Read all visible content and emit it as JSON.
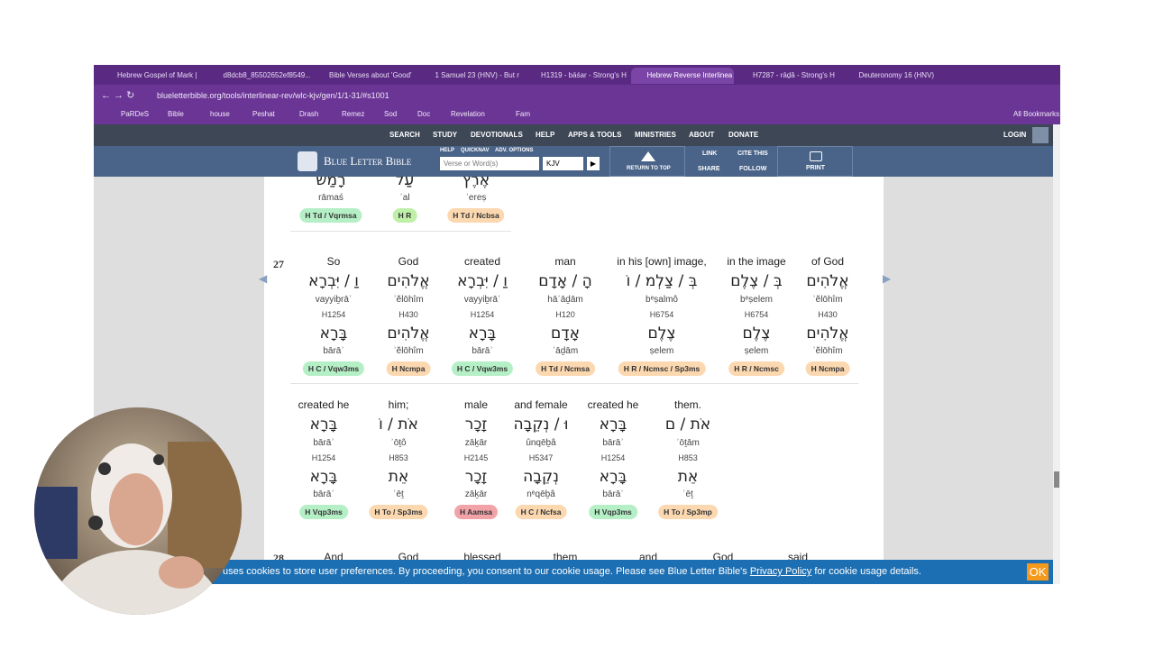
{
  "browser": {
    "tabs": [
      "Hebrew Gospel of Mark |",
      "d8dcb8_85502652ef8549...",
      "Bible Verses about 'Good'",
      "1 Samuel 23 (HNV) - But r",
      "H1319 - bāśar - Strong's H",
      "Hebrew Reverse Interlinea",
      "H7287 - rāḏâ - Strong's H",
      "Deuteronomy 16 (HNV)"
    ],
    "url": "blueletterbible.org/tools/interlinear-rev/wlc-kjv/gen/1/1-31/#s1001",
    "bookmarks": [
      "PaRDeS",
      "Bible",
      "house",
      "Peshat",
      "Drash",
      "Remez",
      "Sod",
      "Doc",
      "Revelation",
      "Fam"
    ],
    "all_bookmarks": "All Bookmarks"
  },
  "site": {
    "nav": [
      "SEARCH",
      "STUDY",
      "DEVOTIONALS",
      "HELP",
      "APPS & TOOLS",
      "MINISTRIES",
      "ABOUT",
      "DONATE"
    ],
    "login": "LOGIN",
    "logo": "Blue Letter Bible",
    "search_links": [
      "HELP",
      "QUICKNAV",
      "ADV. OPTIONS"
    ],
    "search_placeholder": "Verse or Word(s)",
    "version": "KJV",
    "return_top": "RETURN TO TOP",
    "link": "LINK",
    "share": "SHARE",
    "cite": "CITE THIS",
    "follow": "FOLLOW",
    "print": "PRINT"
  },
  "blocks": [
    {
      "rows": [
        [
          {
            "root": "רָמַשׂ",
            "root_translit": "rāmaś",
            "parsing": "H Td / Vqrmsa"
          },
          {
            "root": "עַל",
            "root_translit": "ʿal",
            "parsing": "H R"
          },
          {
            "root": "אֶרֶץ",
            "root_translit": "ʾereṣ",
            "parsing": "H Td / Ncbsa"
          }
        ]
      ]
    },
    {
      "number": "27",
      "rows": [
        [
          {
            "english": "So",
            "hebrew": "וַ / יִּבְרָא",
            "translit": "vayyiḇrāʾ",
            "strong": "H1254",
            "root": "בָּרָא",
            "root_translit": "bārāʾ",
            "parsing": "H C / Vqw3ms"
          },
          {
            "english": "God",
            "hebrew": "אֱלֹהִים",
            "translit": "ʾĕlōhîm",
            "strong": "H430",
            "root": "אֱלֹהִים",
            "root_translit": "ʾĕlōhîm",
            "parsing": "H Ncmpa"
          },
          {
            "english": "created",
            "hebrew": "וַ / יִּבְרָא",
            "translit": "vayyiḇrāʾ",
            "strong": "H1254",
            "root": "בָּרָא",
            "root_translit": "bārāʾ",
            "parsing": "H C / Vqw3ms"
          },
          {
            "english": "man",
            "hebrew": "הָ / אָדָם",
            "translit": "hāʾāḏām",
            "strong": "H120",
            "root": "אָדָם",
            "root_translit": "ʾāḏām",
            "parsing": "H Td / Ncmsa"
          },
          {
            "english": "in his [own] image,",
            "hebrew": "בְּ / צַלְמ / וֹ",
            "translit": "bᵉṣalmô",
            "strong": "H6754",
            "root": "צֶלֶם",
            "root_translit": "ṣelem",
            "parsing": "H R / Ncmsc / Sp3ms"
          },
          {
            "english": "in the image",
            "hebrew": "בְּ / צֶלֶם",
            "translit": "bᵉṣelem",
            "strong": "H6754",
            "root": "צֶלֶם",
            "root_translit": "ṣelem",
            "parsing": "H R / Ncmsc"
          },
          {
            "english": "of God",
            "hebrew": "אֱלֹהִים",
            "translit": "ʾĕlōhîm",
            "strong": "H430",
            "root": "אֱלֹהִים",
            "root_translit": "ʾĕlōhîm",
            "parsing": "H Ncmpa"
          }
        ],
        [
          {
            "english": "created he",
            "hebrew": "בָּרָא",
            "translit": "bārāʾ",
            "strong": "H1254",
            "root": "בָּרָא",
            "root_translit": "bārāʾ",
            "parsing": "H Vqp3ms"
          },
          {
            "english": "him;",
            "hebrew": "אֹת / וֹ",
            "translit": "ʾōṯô",
            "strong": "H853",
            "root": "אֵת",
            "root_translit": "ʾēṯ",
            "parsing": "H To / Sp3ms"
          },
          {
            "english": "male",
            "hebrew": "זָכָר",
            "translit": "zāḵār",
            "strong": "H2145",
            "root": "זָכָר",
            "root_translit": "zāḵār",
            "parsing": "H Aamsa"
          },
          {
            "english": "and female",
            "hebrew": "וּ / נְקֵבָה",
            "translit": "ûnqēḇâ",
            "strong": "H5347",
            "root": "נְקֵבָה",
            "root_translit": "nᵉqēḇâ",
            "parsing": "H C / Ncfsa"
          },
          {
            "english": "created he",
            "hebrew": "בָּרָא",
            "translit": "bārāʾ",
            "strong": "H1254",
            "root": "בָּרָא",
            "root_translit": "bārāʾ",
            "parsing": "H Vqp3ms"
          },
          {
            "english": "them.",
            "hebrew": "אֹת / ם",
            "translit": "ʾōṯām",
            "strong": "H853",
            "root": "אֵת",
            "root_translit": "ʾēṯ",
            "parsing": "H To / Sp3mp"
          }
        ]
      ]
    },
    {
      "number": "28",
      "rows": [
        [
          {
            "english": "And"
          },
          {
            "english": "God"
          },
          {
            "english": "blessed"
          },
          {
            "english": "them"
          },
          {
            "english": "and"
          },
          {
            "english": "God"
          },
          {
            "english": "said"
          }
        ]
      ]
    }
  ],
  "cookie": {
    "text": "uses cookies to store user preferences. By proceeding, you consent to our cookie usage. Please see Blue Letter Bible's ",
    "link": "Privacy Policy",
    "after": " for cookie usage details.",
    "ok": "OK"
  }
}
